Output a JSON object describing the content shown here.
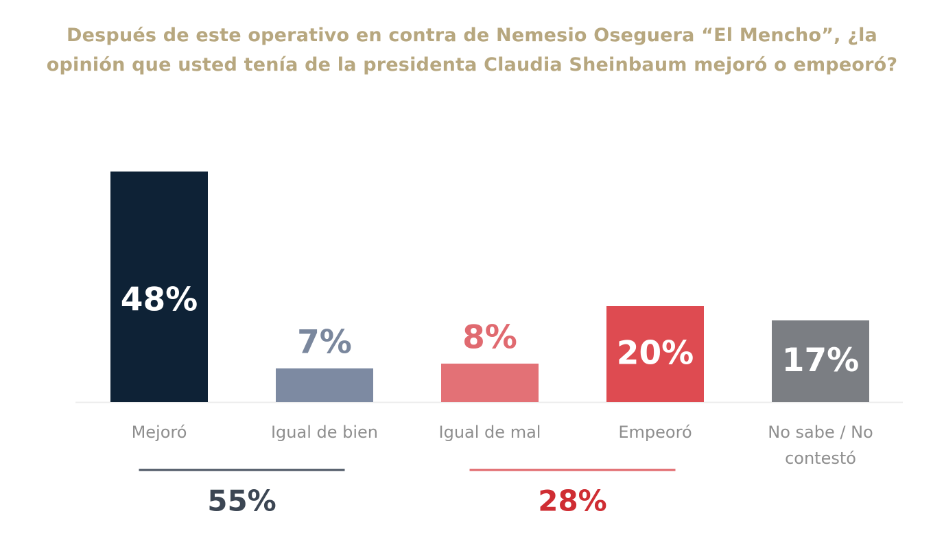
{
  "chart_data": {
    "type": "bar",
    "title": "Después de este operativo en contra de Nemesio Oseguera “El Mencho”, ¿la opinión que usted tenía de la presidenta Claudia Sheinbaum mejoró o empeoró?",
    "categories": [
      "Mejoró",
      "Igual de bien",
      "Igual de mal",
      "Empeoró",
      "No sabe / No contestó"
    ],
    "values": [
      48,
      7,
      8,
      20,
      17
    ],
    "value_labels": [
      "48%",
      "7%",
      "8%",
      "20%",
      "17%"
    ],
    "colors": [
      "#0e2236",
      "#7d8aa2",
      "#e37176",
      "#de4b51",
      "#7b7e83"
    ],
    "label_colors": [
      "#ffffff",
      "#7a879d",
      "#e06a70",
      "#ffffff",
      "#ffffff"
    ],
    "label_inside": [
      true,
      false,
      false,
      true,
      true
    ],
    "xlabel": "",
    "ylabel": "",
    "ylim": [
      0,
      48
    ],
    "grid": false,
    "legend": false,
    "groups": [
      {
        "label": "55%",
        "color": "#3c4653",
        "line_color": "#4b5563",
        "categories": [
          "Mejoró",
          "Igual de bien"
        ]
      },
      {
        "label": "28%",
        "color": "#cf2d33",
        "line_color": "#e0676b",
        "categories": [
          "Igual de mal",
          "Empeoró"
        ]
      }
    ]
  }
}
